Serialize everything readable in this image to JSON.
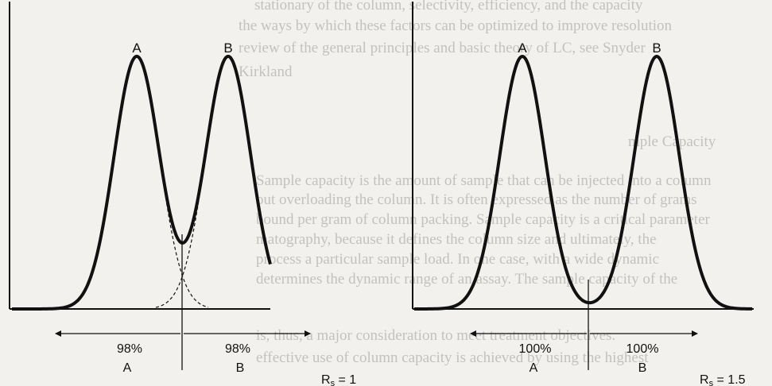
{
  "panels": [
    {
      "peak_labels": [
        "A",
        "B"
      ],
      "percent_labels": [
        "98%",
        "98%"
      ],
      "region_labels": [
        "A",
        "B"
      ],
      "resolution": {
        "symbol": "R",
        "subscript": "s",
        "value": " = 1"
      }
    },
    {
      "peak_labels": [
        "A",
        "B"
      ],
      "percent_labels": [
        "100%",
        "100%"
      ],
      "region_labels": [
        "A",
        "B"
      ],
      "resolution": {
        "symbol": "R",
        "subscript": "s",
        "value": " = 1.5"
      }
    }
  ],
  "background_text": [
    "stationary of the column, selectivity, efficiency, and the capacity",
    "the ways by which these factors can be optimized to improve resolution",
    "review of the general principles and basic theory of LC, see Snyder",
    "Kirkland",
    "mple Capacity",
    "Sample capacity is the amount of sample that can be injected into a column",
    "out overloading the column. It is often expressed as the number of grams",
    "bound per gram of column packing. Sample capacity is a critical parameter",
    "matography, because it defines the column size and ultimately, the",
    "process a particular sample load. In one case, with a wide dynamic",
    "determines the dynamic range of an assay. The sample capacity of the",
    "is, thus, a major consideration to meet treatment objectives.",
    "effective use of column capacity is achieved by using the highest"
  ]
}
